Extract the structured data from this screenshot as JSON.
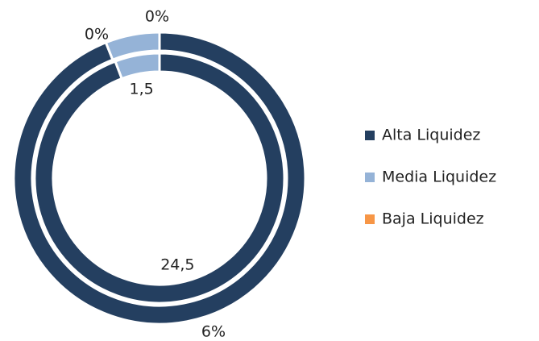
{
  "chart_data": {
    "type": "doughnut",
    "categories": [
      "Alta Liquidez",
      "Media Liquidez",
      "Baja Liquidez"
    ],
    "colors": [
      "#243f60",
      "#95b3d7",
      "#f79646"
    ],
    "series": [
      {
        "values": [
          24.5,
          1.5,
          0
        ],
        "value_labels": [
          "24,5",
          "1,5",
          null
        ]
      },
      {
        "values": [
          94,
          6,
          0
        ]
      }
    ],
    "annotations": [
      "6%",
      "0%",
      "0%"
    ],
    "legend": "right"
  }
}
